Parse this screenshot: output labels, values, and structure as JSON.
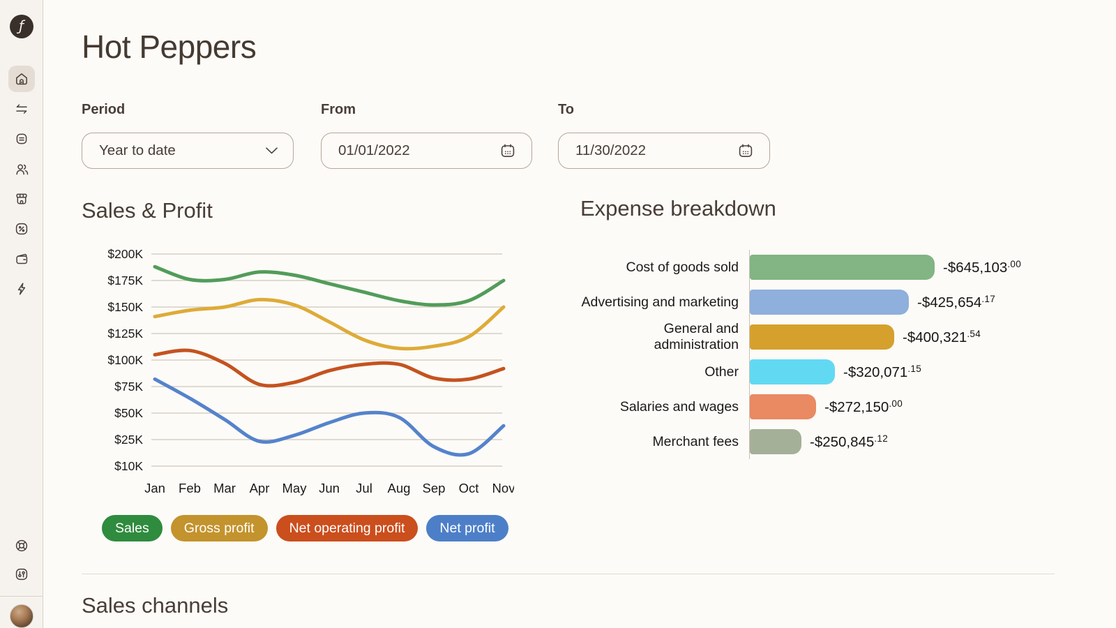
{
  "header": {
    "title": "Hot Peppers"
  },
  "sidebar": {
    "logo_glyph": "ƒ",
    "nav_icons": [
      "home-icon",
      "swap-arrows-icon",
      "note-icon",
      "users-icon",
      "storefront-icon",
      "percent-icon",
      "wallet-icon",
      "lightning-icon"
    ],
    "footer_icons": [
      "help-buoy-icon",
      "sliders-icon"
    ],
    "active_item": "home"
  },
  "filters": {
    "period_label": "Period",
    "period_value": "Year to date",
    "from_label": "From",
    "from_value": "01/01/2022",
    "to_label": "To",
    "to_value": "11/30/2022"
  },
  "sections": {
    "sales_profit_title": "Sales & Profit",
    "expense_title": "Expense breakdown",
    "sales_channels_title": "Sales channels"
  },
  "legend": [
    {
      "label": "Sales",
      "color": "#2f8b3e"
    },
    {
      "label": "Gross profit",
      "color": "#c3932d"
    },
    {
      "label": "Net operating profit",
      "color": "#cb4e1d"
    },
    {
      "label": "Net profit",
      "color": "#4d7fc8"
    }
  ],
  "colors": {
    "page_bg": "#fcfbf8",
    "sidebar_bg": "#f6f3ef",
    "heading_text": "#493e35",
    "gridline": "#cfc5b8",
    "axis_text": "#1d1b19"
  },
  "chart_data": [
    {
      "type": "line",
      "title": "Sales & Profit",
      "x": [
        "Jan",
        "Feb",
        "Mar",
        "Apr",
        "May",
        "Jun",
        "Jul",
        "Aug",
        "Sep",
        "Oct",
        "Nov"
      ],
      "y_tick_labels": [
        "$200K",
        "$175K",
        "$150K",
        "$125K",
        "$100K",
        "$75K",
        "$50K",
        "$25K",
        "$10K"
      ],
      "y_tick_values_k": [
        200,
        175,
        150,
        125,
        100,
        75,
        50,
        25,
        10
      ],
      "grid": "horizontal",
      "legend_position": "bottom",
      "series": [
        {
          "name": "Sales",
          "color": "#529c59",
          "values_k": [
            188,
            176,
            176,
            183,
            180,
            172,
            164,
            156,
            152,
            156,
            175
          ]
        },
        {
          "name": "Gross profit",
          "color": "#deab38",
          "values_k": [
            141,
            147,
            150,
            157,
            152,
            136,
            119,
            111,
            113,
            122,
            150
          ]
        },
        {
          "name": "Net operating profit",
          "color": "#c4531f",
          "values_k": [
            105,
            109,
            97,
            77,
            79,
            90,
            96,
            96,
            83,
            82,
            92
          ]
        },
        {
          "name": "Net profit",
          "color": "#5583cb",
          "values_k": [
            82,
            64,
            44,
            24,
            29,
            41,
            50,
            46,
            21,
            17,
            38
          ]
        }
      ]
    },
    {
      "type": "bar",
      "title": "Expense breakdown",
      "orientation": "horizontal",
      "categories": [
        "Cost of goods sold",
        "Advertising and marketing",
        "General and administration",
        "Other",
        "Salaries and wages",
        "Merchant fees"
      ],
      "values": [
        -645103.0,
        -425654.17,
        -400321.54,
        -320071.15,
        -272150.0,
        -250845.12
      ],
      "value_labels": [
        {
          "main": "-$645,103",
          "cents": ".00"
        },
        {
          "main": "-$425,654",
          "cents": ".17"
        },
        {
          "main": "-$400,321",
          "cents": ".54"
        },
        {
          "main": "-$320,071",
          "cents": ".15"
        },
        {
          "main": "-$272,150",
          "cents": ".00"
        },
        {
          "main": "-$250,845",
          "cents": ".12"
        }
      ],
      "bar_colors": [
        "#83b483",
        "#8fafdc",
        "#d6a02c",
        "#62d9f2",
        "#e98a62",
        "#a4b098"
      ],
      "bar_length_pct": [
        100,
        86,
        78,
        46,
        36,
        28
      ],
      "legend_position": "none"
    }
  ]
}
